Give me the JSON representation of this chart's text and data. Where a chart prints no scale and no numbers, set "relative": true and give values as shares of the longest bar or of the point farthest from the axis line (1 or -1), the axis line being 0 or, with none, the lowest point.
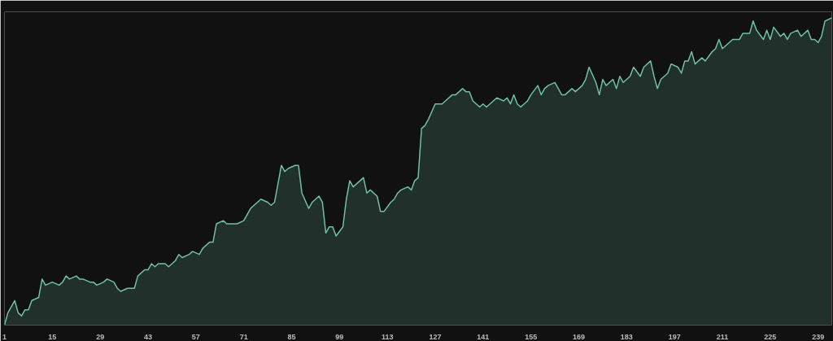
{
  "chart_data": {
    "type": "area",
    "relative": true,
    "x": [
      1,
      2,
      4,
      5,
      6,
      7,
      8,
      9,
      11,
      12,
      13,
      15,
      17,
      18,
      19,
      20,
      22,
      23,
      24,
      26,
      27,
      28,
      30,
      31,
      33,
      34,
      35,
      37,
      39,
      40,
      42,
      43,
      44,
      45,
      46,
      48,
      49,
      51,
      52,
      53,
      55,
      56,
      58,
      59,
      61,
      62,
      63,
      65,
      66,
      68,
      69,
      71,
      72,
      73,
      75,
      76,
      78,
      79,
      80,
      82,
      83,
      84,
      86,
      87,
      88,
      90,
      91,
      92,
      93,
      94,
      95,
      96,
      97,
      98,
      100,
      101,
      102,
      103,
      104,
      106,
      107,
      108,
      110,
      111,
      112,
      114,
      115,
      116,
      117,
      119,
      120,
      121,
      122,
      123,
      124,
      125,
      127,
      129,
      130,
      132,
      133,
      135,
      136,
      137,
      138,
      140,
      141,
      142,
      144,
      145,
      147,
      148,
      149,
      150,
      151,
      152,
      154,
      155,
      157,
      158,
      159,
      160,
      162,
      164,
      165,
      167,
      168,
      170,
      171,
      172,
      174,
      175,
      176,
      177,
      179,
      180,
      181,
      182,
      184,
      185,
      187,
      188,
      190,
      191,
      192,
      193,
      195,
      196,
      198,
      199,
      200,
      201,
      202,
      203,
      205,
      206,
      208,
      209,
      210,
      211,
      213,
      214,
      216,
      217,
      219,
      220,
      221,
      223,
      224,
      225,
      226,
      228,
      229,
      230,
      231,
      233,
      234,
      236,
      237,
      238,
      239,
      240,
      241,
      243
    ],
    "series": [
      {
        "color": "#6fc1a4",
        "values": [
          0,
          0.04,
          0.08,
          0.04,
          0.03,
          0.05,
          0.05,
          0.08,
          0.09,
          0.15,
          0.13,
          0.14,
          0.13,
          0.14,
          0.16,
          0.15,
          0.16,
          0.15,
          0.15,
          0.14,
          0.14,
          0.13,
          0.14,
          0.15,
          0.14,
          0.12,
          0.11,
          0.12,
          0.12,
          0.16,
          0.18,
          0.18,
          0.2,
          0.19,
          0.2,
          0.2,
          0.19,
          0.21,
          0.23,
          0.22,
          0.23,
          0.24,
          0.23,
          0.25,
          0.27,
          0.27,
          0.33,
          0.34,
          0.33,
          0.33,
          0.33,
          0.34,
          0.36,
          0.38,
          0.4,
          0.41,
          0.4,
          0.39,
          0.4,
          0.52,
          0.5,
          0.51,
          0.52,
          0.52,
          0.43,
          0.38,
          0.4,
          0.41,
          0.42,
          0.4,
          0.3,
          0.32,
          0.32,
          0.29,
          0.32,
          0.41,
          0.47,
          0.45,
          0.46,
          0.48,
          0.43,
          0.44,
          0.42,
          0.37,
          0.37,
          0.4,
          0.41,
          0.43,
          0.44,
          0.45,
          0.44,
          0.47,
          0.48,
          0.64,
          0.65,
          0.67,
          0.72,
          0.72,
          0.73,
          0.75,
          0.75,
          0.77,
          0.76,
          0.76,
          0.73,
          0.71,
          0.72,
          0.71,
          0.73,
          0.74,
          0.73,
          0.74,
          0.72,
          0.75,
          0.72,
          0.71,
          0.73,
          0.75,
          0.78,
          0.75,
          0.77,
          0.78,
          0.79,
          0.75,
          0.75,
          0.77,
          0.76,
          0.78,
          0.8,
          0.84,
          0.79,
          0.75,
          0.8,
          0.78,
          0.8,
          0.77,
          0.81,
          0.79,
          0.81,
          0.84,
          0.81,
          0.84,
          0.86,
          0.81,
          0.77,
          0.8,
          0.82,
          0.85,
          0.84,
          0.82,
          0.86,
          0.86,
          0.89,
          0.85,
          0.87,
          0.86,
          0.89,
          0.9,
          0.93,
          0.9,
          0.92,
          0.93,
          0.93,
          0.95,
          0.95,
          0.99,
          0.96,
          0.93,
          0.96,
          0.93,
          0.97,
          0.94,
          0.95,
          0.93,
          0.95,
          0.96,
          0.94,
          0.96,
          0.93,
          0.93,
          0.92,
          0.94,
          0.99,
          1
        ]
      }
    ],
    "xlim": [
      1,
      243
    ],
    "xticks": [
      1,
      15,
      29,
      43,
      57,
      71,
      85,
      99,
      113,
      127,
      141,
      155,
      169,
      183,
      197,
      211,
      225,
      239
    ],
    "grid": false
  }
}
